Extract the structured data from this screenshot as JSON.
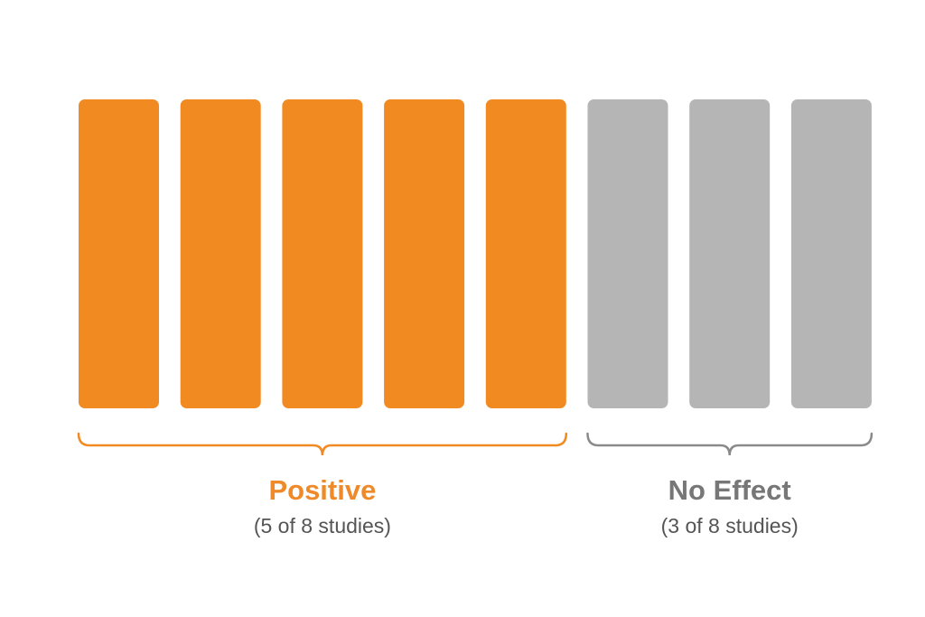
{
  "groups": [
    {
      "label": "Positive",
      "sublabel": "(5 of 8 studies)",
      "count": 5,
      "color": "#f28a22",
      "label_color": "#ee8a2a"
    },
    {
      "label": "No Effect",
      "sublabel": "(3 of 8 studies)",
      "count": 3,
      "color": "#b5b5b5",
      "label_color": "#777777"
    }
  ]
}
